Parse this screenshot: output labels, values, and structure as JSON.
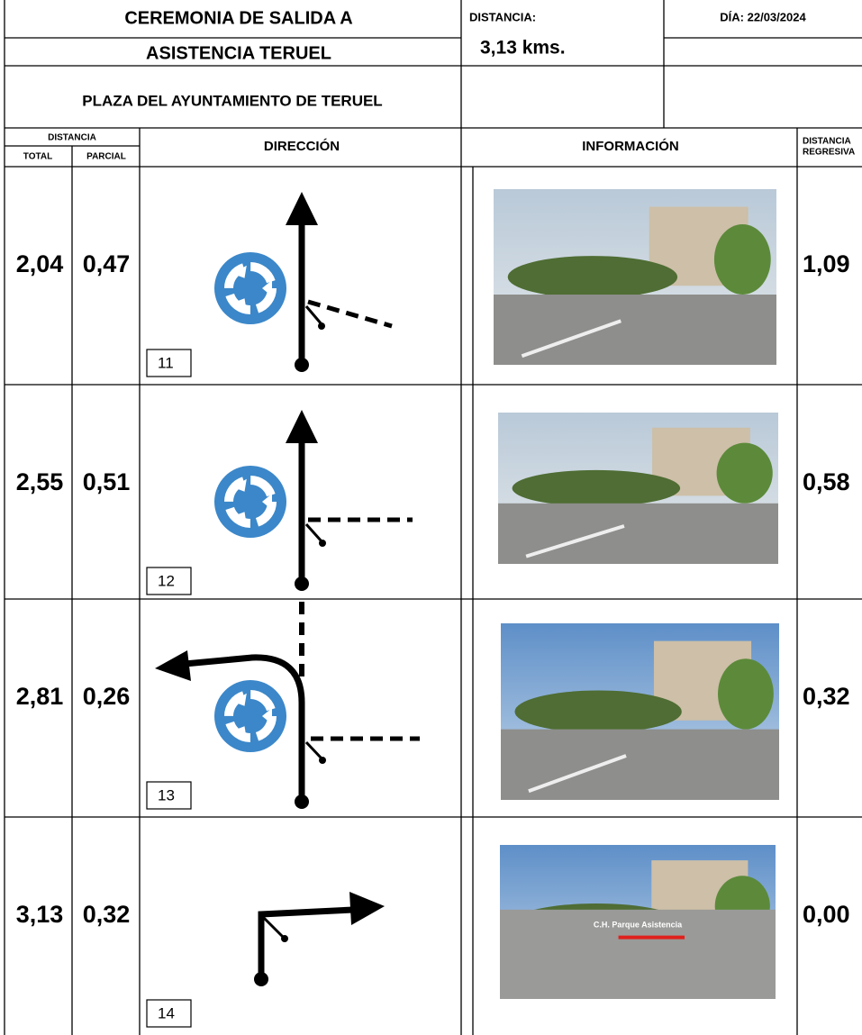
{
  "header": {
    "title_line1": "CEREMONIA DE SALIDA A",
    "title_line2": "ASISTENCIA TERUEL",
    "location": "PLAZA DEL AYUNTAMIENTO DE TERUEL",
    "distance_label": "DISTANCIA:",
    "distance_value": "3,13 kms.",
    "date": "DÍA: 22/03/2024"
  },
  "columns": {
    "distance": "DISTANCIA",
    "total": "TOTAL",
    "partial": "PARCIAL",
    "direction": "DIRECCIÓN",
    "information": "INFORMACIÓN",
    "regressive_line1": "DISTANCIA",
    "regressive_line2": "REGRESIVA"
  },
  "rows": [
    {
      "total": "2,04",
      "partial": "0,47",
      "step": "11",
      "regressive": "1,09"
    },
    {
      "total": "2,55",
      "partial": "0,51",
      "step": "12",
      "regressive": "0,58"
    },
    {
      "total": "2,81",
      "partial": "0,26",
      "step": "13",
      "regressive": "0,32"
    },
    {
      "total": "3,13",
      "partial": "0,32",
      "step": "14",
      "regressive": "0,00",
      "photo_caption": "C.H. Parque Asistencia"
    }
  ]
}
